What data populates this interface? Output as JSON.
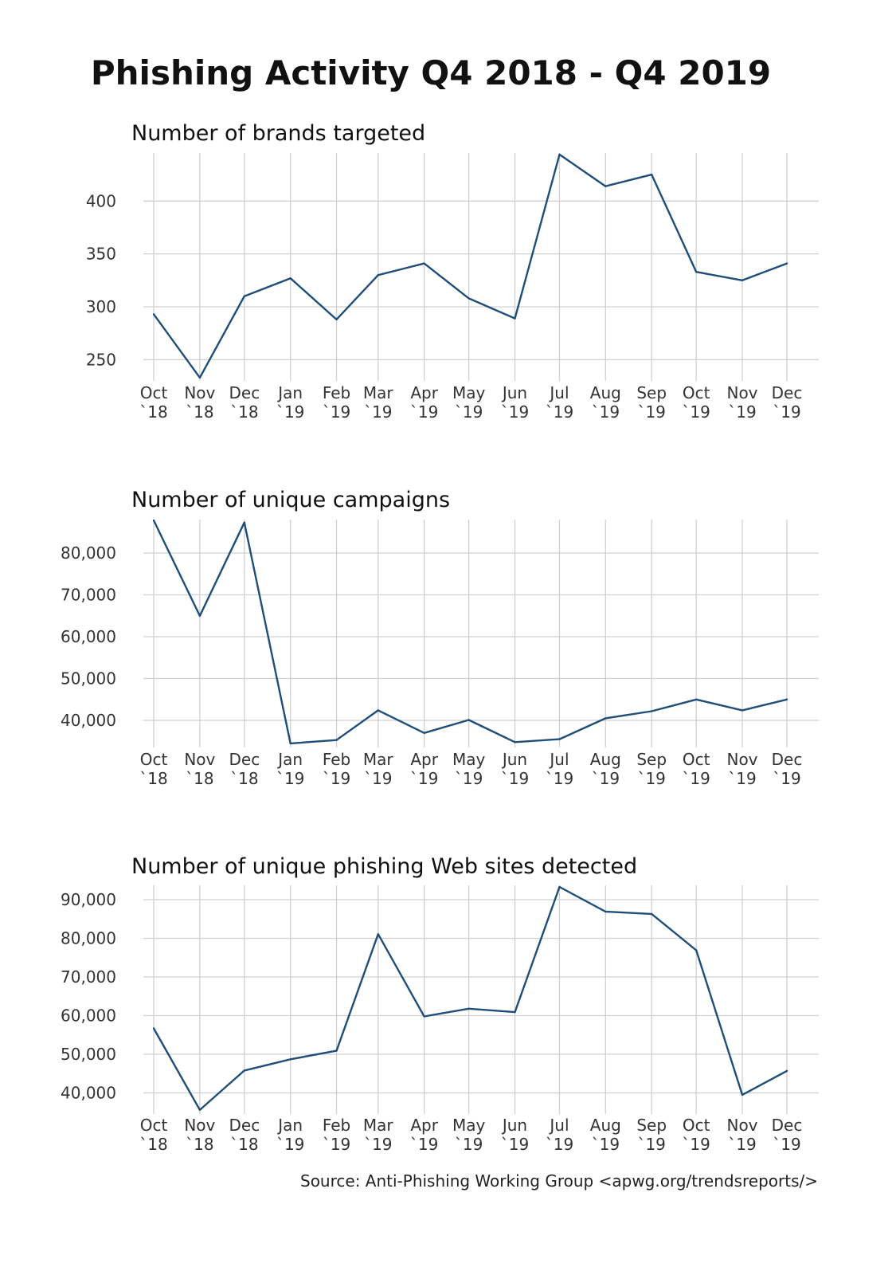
{
  "title": "Phishing Activity Q4 2018 - Q4 2019",
  "source": "Source: Anti-Phishing Working Group <apwg.org/trendsreports/>",
  "line_color": "#1f4e79",
  "grid_color": "#d0d0d0",
  "chart_data": [
    {
      "type": "line",
      "title": "Number of brands targeted",
      "x": [
        "2018-10-01",
        "2018-11-01",
        "2018-12-01",
        "2019-01-01",
        "2019-02-01",
        "2019-03-01",
        "2019-04-01",
        "2019-05-01",
        "2019-06-01",
        "2019-07-01",
        "2019-08-01",
        "2019-09-01",
        "2019-10-01",
        "2019-11-01",
        "2019-12-01"
      ],
      "x_tick_months": [
        "Oct",
        "Nov",
        "Dec",
        "Jan",
        "Feb",
        "Mar",
        "Apr",
        "May",
        "Jun",
        "Jul",
        "Aug",
        "Sep",
        "Oct",
        "Nov",
        "Dec"
      ],
      "x_tick_years": [
        "`18",
        "`18",
        "`18",
        "`19",
        "`19",
        "`19",
        "`19",
        "`19",
        "`19",
        "`19",
        "`19",
        "`19",
        "`19",
        "`19",
        "`19"
      ],
      "y": [
        293,
        233,
        310,
        327,
        288,
        330,
        341,
        308,
        289,
        444,
        414,
        425,
        333,
        325,
        341
      ],
      "y_ticks": [
        250,
        300,
        350,
        400
      ],
      "y_tick_labels": [
        "250",
        "300",
        "350",
        "400"
      ],
      "grid": true
    },
    {
      "type": "line",
      "title": "Number of unique campaigns",
      "x": [
        "2018-10-01",
        "2018-11-01",
        "2018-12-01",
        "2019-01-01",
        "2019-02-01",
        "2019-03-01",
        "2019-04-01",
        "2019-05-01",
        "2019-06-01",
        "2019-07-01",
        "2019-08-01",
        "2019-09-01",
        "2019-10-01",
        "2019-11-01",
        "2019-12-01"
      ],
      "x_tick_months": [
        "Oct",
        "Nov",
        "Dec",
        "Jan",
        "Feb",
        "Mar",
        "Apr",
        "May",
        "Jun",
        "Jul",
        "Aug",
        "Sep",
        "Oct",
        "Nov",
        "Dec"
      ],
      "x_tick_years": [
        "`18",
        "`18",
        "`18",
        "`19",
        "`19",
        "`19",
        "`19",
        "`19",
        "`19",
        "`19",
        "`19",
        "`19",
        "`19",
        "`19",
        "`19"
      ],
      "y": [
        87800,
        65000,
        87300,
        34500,
        35300,
        42400,
        37000,
        40100,
        34800,
        35500,
        40500,
        42200,
        45000,
        42400,
        45000
      ],
      "y_ticks": [
        40000,
        50000,
        60000,
        70000,
        80000
      ],
      "y_tick_labels": [
        "40,000",
        "50,000",
        "60,000",
        "70,000",
        "80,000"
      ],
      "grid": true
    },
    {
      "type": "line",
      "title": "Number of unique phishing Web sites detected",
      "x": [
        "2018-10-01",
        "2018-11-01",
        "2018-12-01",
        "2019-01-01",
        "2019-02-01",
        "2019-03-01",
        "2019-04-01",
        "2019-05-01",
        "2019-06-01",
        "2019-07-01",
        "2019-08-01",
        "2019-09-01",
        "2019-10-01",
        "2019-11-01",
        "2019-12-01"
      ],
      "x_tick_months": [
        "Oct",
        "Nov",
        "Dec",
        "Jan",
        "Feb",
        "Mar",
        "Apr",
        "May",
        "Jun",
        "Jul",
        "Aug",
        "Sep",
        "Oct",
        "Nov",
        "Dec"
      ],
      "x_tick_years": [
        "`18",
        "`18",
        "`18",
        "`19",
        "`19",
        "`19",
        "`19",
        "`19",
        "`19",
        "`19",
        "`19",
        "`19",
        "`19",
        "`19",
        "`19"
      ],
      "y": [
        56700,
        35600,
        45800,
        48700,
        50900,
        81100,
        59800,
        61800,
        60900,
        93300,
        86900,
        86300,
        76900,
        39500,
        45700
      ],
      "y_ticks": [
        40000,
        50000,
        60000,
        70000,
        80000,
        90000
      ],
      "y_tick_labels": [
        "40,000",
        "50,000",
        "60,000",
        "70,000",
        "80,000",
        "90,000"
      ],
      "grid": true
    }
  ]
}
